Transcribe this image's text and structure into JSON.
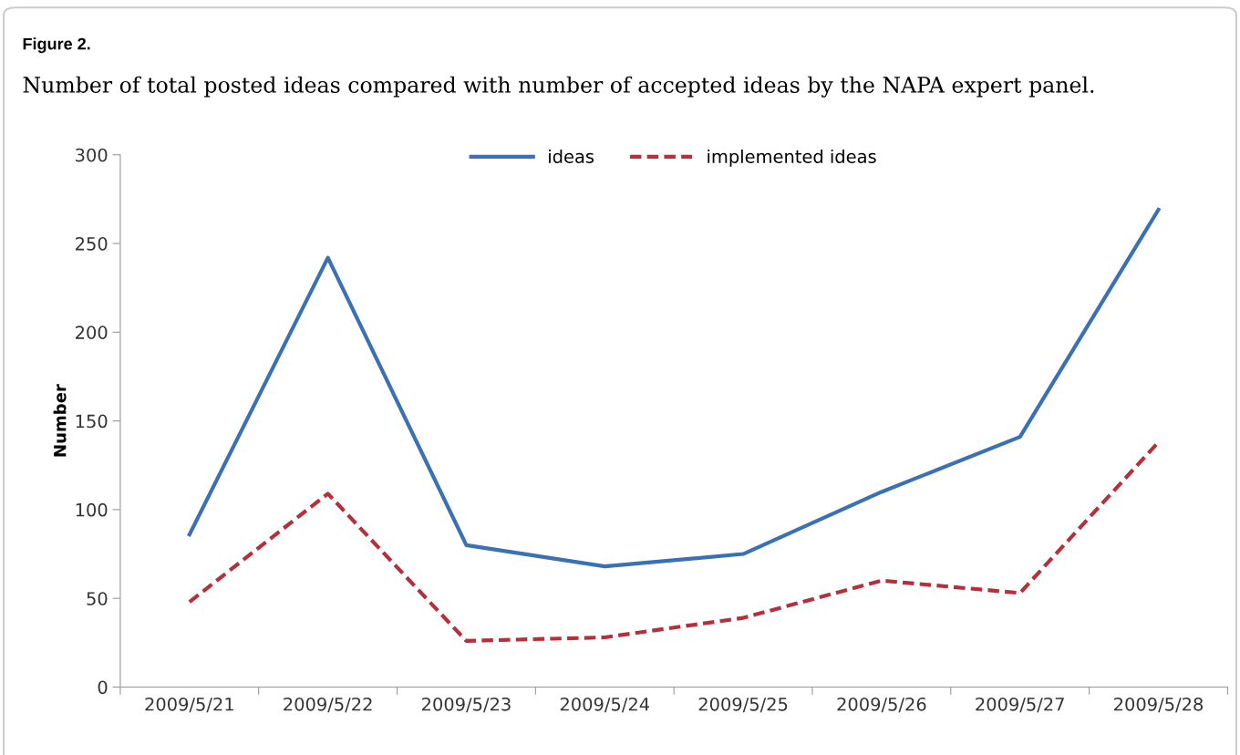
{
  "chart_data": {
    "type": "line",
    "title": "Figure 2.",
    "subtitle": "Number of total posted ideas compared with number of accepted ideas by the NAPA expert panel.",
    "ylabel": "Number",
    "categories": [
      "2009/5/21",
      "2009/5/22",
      "2009/5/23",
      "2009/5/24",
      "2009/5/25",
      "2009/5/26",
      "2009/5/27",
      "2009/5/28"
    ],
    "series": [
      {
        "name": "ideas",
        "color": "#3a70b5",
        "line_style": "solid",
        "values": [
          86,
          242,
          80,
          68,
          75,
          110,
          141,
          269
        ]
      },
      {
        "name": "implemented ideas",
        "color": "#b5303a",
        "line_style": "dashed",
        "values": [
          48,
          109,
          26,
          28,
          39,
          60,
          53,
          138
        ]
      }
    ],
    "ylim": [
      0,
      300
    ],
    "yticks": [
      0,
      50,
      100,
      150,
      200,
      250,
      300
    ],
    "grid": false,
    "legend": "top",
    "marker": "none"
  }
}
